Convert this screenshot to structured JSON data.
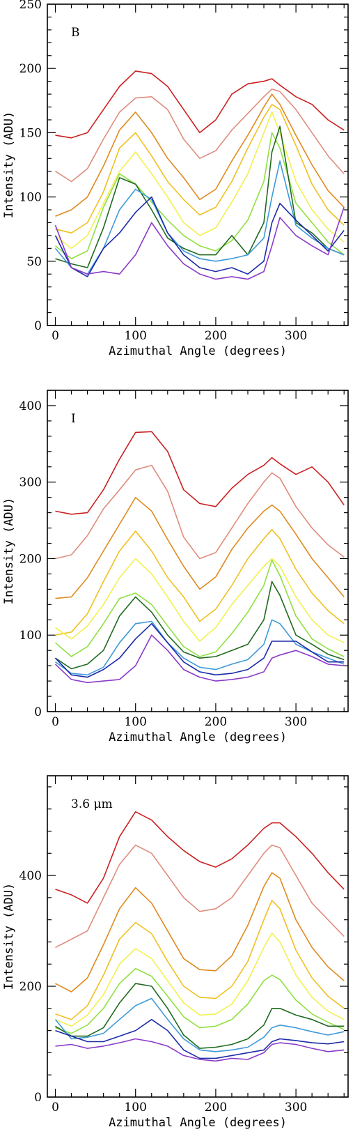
{
  "chart_data": [
    {
      "type": "line",
      "panel_label": "B",
      "xlabel": "Azimuthal Angle (degrees)",
      "ylabel": "Intensity (ADU)",
      "xlim": [
        -10,
        365
      ],
      "ylim": [
        0,
        250
      ],
      "xticks": [
        0,
        100,
        200,
        300
      ],
      "yticks": [
        0,
        50,
        100,
        150,
        200,
        250
      ],
      "x": [
        0,
        20,
        40,
        60,
        80,
        100,
        120,
        140,
        160,
        180,
        200,
        220,
        240,
        260,
        270,
        280,
        300,
        320,
        340,
        360
      ],
      "series": [
        {
          "color": "#cc1f1f",
          "values": [
            148,
            146,
            150,
            168,
            186,
            198,
            196,
            186,
            168,
            150,
            160,
            180,
            188,
            190,
            192,
            187,
            178,
            172,
            160,
            152
          ]
        },
        {
          "color": "#e08c7c",
          "values": [
            120,
            112,
            122,
            145,
            166,
            177,
            178,
            168,
            145,
            130,
            136,
            152,
            165,
            178,
            184,
            182,
            168,
            150,
            132,
            118
          ]
        },
        {
          "color": "#e08a1e",
          "values": [
            85,
            90,
            100,
            124,
            152,
            166,
            150,
            130,
            115,
            98,
            106,
            128,
            148,
            170,
            180,
            172,
            148,
            125,
            105,
            92
          ]
        },
        {
          "color": "#f0c020",
          "values": [
            75,
            72,
            80,
            104,
            138,
            150,
            132,
            112,
            98,
            86,
            92,
            112,
            138,
            162,
            172,
            168,
            140,
            110,
            90,
            78
          ]
        },
        {
          "color": "#f2f050",
          "values": [
            70,
            60,
            70,
            95,
            120,
            135,
            118,
            100,
            80,
            70,
            76,
            96,
            118,
            150,
            166,
            150,
            112,
            90,
            75,
            65
          ]
        },
        {
          "color": "#8fe040",
          "values": [
            62,
            52,
            58,
            92,
            118,
            110,
            96,
            82,
            70,
            62,
            58,
            66,
            82,
            112,
            150,
            138,
            95,
            80,
            65,
            55
          ]
        },
        {
          "color": "#1f6a1e",
          "values": [
            52,
            48,
            45,
            76,
            115,
            110,
            90,
            68,
            60,
            55,
            55,
            70,
            55,
            80,
            135,
            155,
            80,
            72,
            60,
            55
          ]
        },
        {
          "color": "#3d9ad8",
          "values": [
            60,
            45,
            40,
            60,
            90,
            106,
            98,
            72,
            58,
            52,
            50,
            52,
            55,
            68,
            100,
            128,
            78,
            68,
            60,
            55
          ]
        },
        {
          "color": "#1c2aa8",
          "values": [
            70,
            45,
            38,
            60,
            72,
            88,
            100,
            72,
            55,
            45,
            42,
            45,
            40,
            50,
            80,
            95,
            82,
            70,
            58,
            74
          ]
        },
        {
          "color": "#8a3ac8",
          "values": [
            78,
            45,
            40,
            42,
            40,
            55,
            80,
            62,
            48,
            40,
            36,
            38,
            36,
            42,
            62,
            84,
            70,
            62,
            55,
            92
          ]
        }
      ]
    },
    {
      "type": "line",
      "panel_label": "I",
      "xlabel": "Azimuthal Angle (degrees)",
      "ylabel": "Intensity (ADU)",
      "xlim": [
        -10,
        365
      ],
      "ylim": [
        0,
        420
      ],
      "xticks": [
        0,
        100,
        200,
        300
      ],
      "yticks": [
        0,
        100,
        200,
        300,
        400
      ],
      "x": [
        0,
        20,
        40,
        60,
        80,
        100,
        120,
        140,
        160,
        180,
        200,
        220,
        240,
        260,
        270,
        280,
        300,
        320,
        340,
        360
      ],
      "series": [
        {
          "color": "#cc1f1f",
          "values": [
            262,
            258,
            260,
            290,
            330,
            365,
            366,
            340,
            290,
            272,
            268,
            292,
            310,
            322,
            332,
            324,
            310,
            320,
            300,
            270
          ]
        },
        {
          "color": "#e08c7c",
          "values": [
            200,
            205,
            230,
            265,
            290,
            316,
            322,
            288,
            228,
            200,
            208,
            240,
            272,
            300,
            312,
            305,
            268,
            240,
            218,
            202
          ]
        },
        {
          "color": "#e08a1e",
          "values": [
            148,
            150,
            175,
            210,
            245,
            280,
            262,
            225,
            190,
            160,
            176,
            212,
            240,
            262,
            270,
            262,
            232,
            200,
            175,
            150
          ]
        },
        {
          "color": "#f0c020",
          "values": [
            100,
            104,
            128,
            170,
            210,
            236,
            210,
            175,
            150,
            118,
            134,
            165,
            200,
            226,
            238,
            226,
            186,
            155,
            132,
            115
          ]
        },
        {
          "color": "#f2f050",
          "values": [
            110,
            95,
            112,
            140,
            175,
            200,
            180,
            150,
            118,
            92,
            110,
            140,
            165,
            190,
            200,
            190,
            150,
            120,
            100,
            90
          ]
        },
        {
          "color": "#8fe040",
          "values": [
            90,
            72,
            85,
            115,
            148,
            155,
            140,
            112,
            85,
            72,
            78,
            102,
            130,
            165,
            198,
            178,
            125,
            95,
            82,
            72
          ]
        },
        {
          "color": "#1f6a1e",
          "values": [
            70,
            56,
            62,
            80,
            125,
            150,
            130,
            100,
            78,
            70,
            72,
            80,
            88,
            120,
            170,
            152,
            100,
            88,
            75,
            68
          ]
        },
        {
          "color": "#3d9ad8",
          "values": [
            65,
            50,
            48,
            58,
            90,
            115,
            118,
            90,
            70,
            58,
            55,
            62,
            68,
            88,
            120,
            115,
            88,
            78,
            70,
            62
          ]
        },
        {
          "color": "#1c2aa8",
          "values": [
            70,
            48,
            45,
            55,
            70,
            95,
            115,
            90,
            65,
            52,
            48,
            50,
            55,
            70,
            92,
            92,
            92,
            78,
            65,
            65
          ]
        },
        {
          "color": "#8a3ac8",
          "values": [
            62,
            42,
            38,
            40,
            42,
            60,
            100,
            80,
            55,
            45,
            40,
            42,
            45,
            52,
            70,
            74,
            80,
            72,
            62,
            60
          ]
        }
      ]
    },
    {
      "type": "line",
      "panel_label": "3.6 μm",
      "xlabel": "Azimuthal Angle (degrees)",
      "ylabel": "Intensity (ADU)",
      "xlim": [
        -10,
        365
      ],
      "ylim": [
        0,
        580
      ],
      "xticks": [
        0,
        100,
        200,
        300
      ],
      "yticks": [
        0,
        200,
        400
      ],
      "x": [
        0,
        20,
        40,
        60,
        80,
        100,
        120,
        140,
        160,
        180,
        200,
        220,
        240,
        260,
        270,
        280,
        300,
        320,
        340,
        360
      ],
      "series": [
        {
          "color": "#cc1f1f",
          "values": [
            375,
            365,
            350,
            395,
            470,
            515,
            500,
            470,
            445,
            425,
            415,
            430,
            455,
            485,
            495,
            495,
            470,
            440,
            405,
            375
          ]
        },
        {
          "color": "#e08c7c",
          "values": [
            270,
            285,
            300,
            360,
            420,
            455,
            440,
            400,
            360,
            335,
            340,
            360,
            400,
            440,
            455,
            450,
            400,
            350,
            320,
            290
          ]
        },
        {
          "color": "#e08a1e",
          "values": [
            205,
            190,
            215,
            275,
            340,
            378,
            350,
            300,
            250,
            230,
            228,
            255,
            310,
            380,
            405,
            395,
            320,
            270,
            235,
            210
          ]
        },
        {
          "color": "#f0c020",
          "values": [
            150,
            140,
            165,
            220,
            285,
            315,
            295,
            245,
            200,
            180,
            178,
            200,
            245,
            320,
            355,
            340,
            265,
            215,
            182,
            160
          ]
        },
        {
          "color": "#f2f050",
          "values": [
            140,
            128,
            148,
            185,
            240,
            268,
            250,
            210,
            170,
            148,
            150,
            168,
            210,
            270,
            296,
            280,
            220,
            180,
            155,
            140
          ]
        },
        {
          "color": "#8fe040",
          "values": [
            125,
            115,
            130,
            160,
            205,
            232,
            218,
            182,
            145,
            125,
            128,
            140,
            168,
            210,
            220,
            212,
            175,
            150,
            135,
            122
          ]
        },
        {
          "color": "#1f6a1e",
          "values": [
            128,
            110,
            110,
            125,
            170,
            205,
            200,
            160,
            112,
            88,
            90,
            95,
            105,
            130,
            160,
            160,
            148,
            140,
            128,
            128
          ]
        },
        {
          "color": "#3d9ad8",
          "values": [
            140,
            105,
            108,
            115,
            140,
            165,
            178,
            140,
            105,
            85,
            82,
            85,
            90,
            108,
            125,
            130,
            125,
            118,
            112,
            118
          ]
        },
        {
          "color": "#1c2aa8",
          "values": [
            120,
            110,
            100,
            100,
            110,
            120,
            140,
            120,
            85,
            70,
            70,
            75,
            80,
            85,
            100,
            105,
            102,
            98,
            96,
            100
          ]
        },
        {
          "color": "#8a3ac8",
          "values": [
            92,
            95,
            88,
            92,
            98,
            105,
            100,
            92,
            75,
            68,
            65,
            70,
            68,
            80,
            95,
            98,
            95,
            88,
            82,
            85
          ]
        }
      ]
    }
  ]
}
